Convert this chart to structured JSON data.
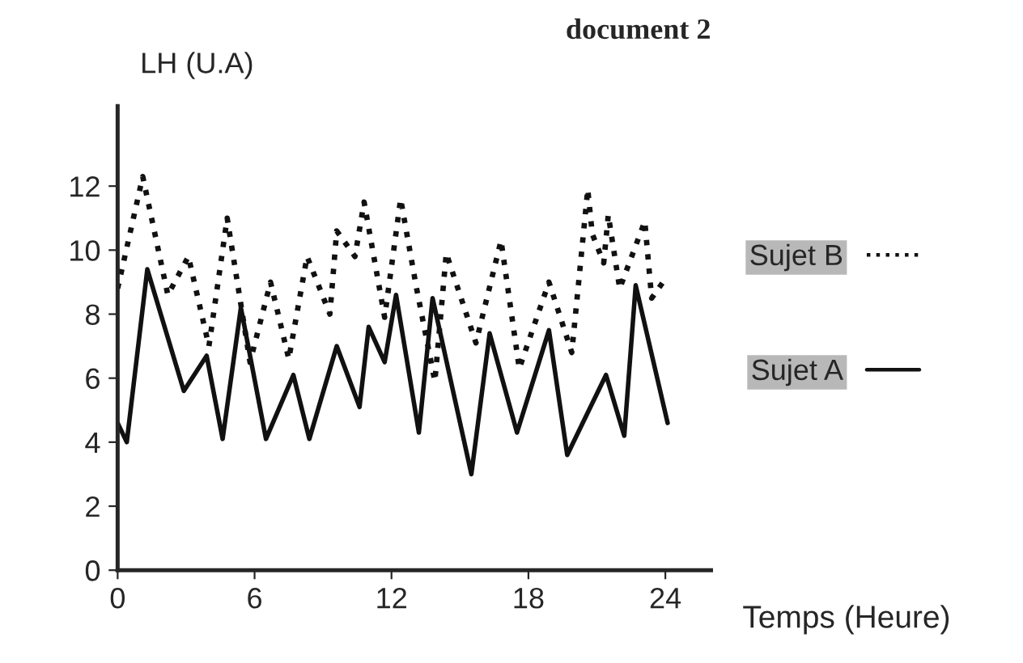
{
  "chart_data": {
    "type": "line",
    "title": "document 2",
    "xlabel": "Temps (Heure)",
    "ylabel": "LH (U.A)",
    "xlim": [
      0,
      26
    ],
    "xticks": [
      0,
      6,
      12,
      18,
      24
    ],
    "ylim": [
      0,
      14.5
    ],
    "yticks": [
      0,
      2,
      4,
      6,
      8,
      10,
      12
    ],
    "grid": false,
    "legend": "right",
    "marker": "none",
    "series": [
      {
        "name": "Sujet B",
        "color": "#111111",
        "line_style": "dotted",
        "x": [
          0,
          1.1,
          2.2,
          3.1,
          4.0,
          4.8,
          5.8,
          6.7,
          7.5,
          8.3,
          9.3,
          9.6,
          10.4,
          10.8,
          11.7,
          12.4,
          13.1,
          13.9,
          14.4,
          15.7,
          16.8,
          17.6,
          18.9,
          19.9,
          20.6,
          20.8,
          21.3,
          21.5,
          22.0,
          23.1,
          23.4,
          24.0
        ],
        "values": [
          8.8,
          12.3,
          8.6,
          9.8,
          7.0,
          11.0,
          6.5,
          9.0,
          6.6,
          9.8,
          8.0,
          10.6,
          9.8,
          11.5,
          7.9,
          11.6,
          8.8,
          5.9,
          9.9,
          7.1,
          10.3,
          6.3,
          9.0,
          6.8,
          11.9,
          10.5,
          9.6,
          11.1,
          8.8,
          10.9,
          8.5,
          9.1
        ]
      },
      {
        "name": "Sujet A",
        "color": "#111111",
        "line_style": "solid",
        "x": [
          0,
          0.4,
          1.3,
          2.9,
          3.9,
          4.6,
          5.4,
          6.5,
          7.7,
          8.4,
          9.6,
          10.6,
          11.0,
          11.7,
          12.2,
          13.2,
          13.8,
          15.5,
          16.3,
          17.5,
          18.9,
          19.7,
          21.4,
          22.2,
          22.7,
          24.1
        ],
        "values": [
          4.6,
          4.0,
          9.4,
          5.6,
          6.7,
          4.1,
          8.2,
          4.1,
          6.1,
          4.1,
          7.0,
          5.1,
          7.6,
          6.5,
          8.6,
          4.3,
          8.5,
          3.0,
          7.4,
          4.3,
          7.5,
          3.6,
          6.1,
          4.2,
          8.9,
          4.6
        ]
      }
    ]
  }
}
